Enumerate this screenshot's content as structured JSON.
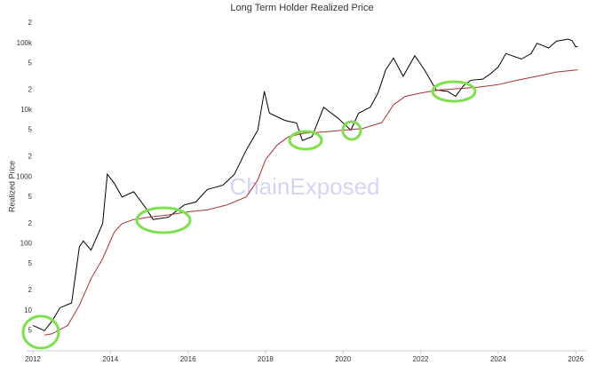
{
  "chart_data": {
    "type": "line",
    "title": "Long Term Holder Realized Price",
    "y_label": "Realized Price",
    "watermark": "ChainExposed",
    "log_y": true,
    "grid": false,
    "xlim": [
      2011.84,
      2026.27
    ],
    "xticks": [
      2012,
      2014,
      2016,
      2018,
      2020,
      2022,
      2024,
      2026
    ],
    "ylim": [
      2.5,
      280000
    ],
    "yticks": [
      {
        "value": 5,
        "label": "5"
      },
      10,
      {
        "value": 20,
        "label": "2"
      },
      {
        "value": 50,
        "label": "5"
      },
      100,
      {
        "value": 200,
        "label": "2"
      },
      {
        "value": 500,
        "label": "5"
      },
      1000,
      {
        "value": 2000,
        "label": "2"
      },
      {
        "value": 5000,
        "label": "5"
      },
      {
        "value": 10000,
        "label": "10k"
      },
      {
        "value": 20000,
        "label": "2"
      },
      {
        "value": 50000,
        "label": "5"
      },
      {
        "value": 100000,
        "label": "100k"
      },
      {
        "value": 200000,
        "label": "2"
      }
    ],
    "series": [
      {
        "color": "#000000",
        "x": [
          2012.0,
          2012.3,
          2012.5,
          2012.7,
          2013.0,
          2013.2,
          2013.3,
          2013.5,
          2013.8,
          2013.92,
          2014.1,
          2014.3,
          2014.6,
          2014.9,
          2015.1,
          2015.5,
          2015.9,
          2016.2,
          2016.5,
          2016.9,
          2017.2,
          2017.5,
          2017.8,
          2017.97,
          2018.1,
          2018.5,
          2018.8,
          2018.95,
          2019.2,
          2019.5,
          2019.9,
          2020.2,
          2020.4,
          2020.7,
          2020.9,
          2021.1,
          2021.3,
          2021.55,
          2021.85,
          2022.1,
          2022.4,
          2022.7,
          2022.9,
          2023.1,
          2023.3,
          2023.6,
          2023.8,
          2024.0,
          2024.2,
          2024.6,
          2024.85,
          2025.0,
          2025.3,
          2025.5,
          2025.8,
          2025.9,
          2026.0,
          2026.05
        ],
        "values": [
          6,
          5,
          7,
          11,
          13,
          90,
          110,
          80,
          200,
          1100,
          800,
          500,
          600,
          350,
          230,
          250,
          380,
          420,
          650,
          750,
          1100,
          2500,
          5000,
          19000,
          9000,
          7000,
          6400,
          3500,
          4000,
          11000,
          7300,
          5000,
          9000,
          11000,
          18000,
          40000,
          60000,
          32000,
          65000,
          40000,
          20000,
          19000,
          16000,
          23000,
          28000,
          29000,
          35000,
          44000,
          70000,
          58000,
          70000,
          100000,
          85000,
          107000,
          115000,
          110000,
          88000,
          90000
        ]
      },
      {
        "color": "#a83232",
        "x": [
          2012.3,
          2012.5,
          2012.9,
          2013.2,
          2013.5,
          2013.8,
          2014.1,
          2014.3,
          2014.6,
          2015.0,
          2015.5,
          2016.0,
          2016.5,
          2017.0,
          2017.5,
          2017.8,
          2018.0,
          2018.3,
          2018.6,
          2019.0,
          2019.5,
          2020.0,
          2020.5,
          2021.0,
          2021.3,
          2021.6,
          2022.0,
          2022.5,
          2023.0,
          2023.5,
          2024.0,
          2024.5,
          2025.0,
          2025.5,
          2026.05
        ],
        "values": [
          4.3,
          4.5,
          6,
          12,
          30,
          60,
          150,
          200,
          230,
          250,
          270,
          300,
          320,
          380,
          500,
          900,
          1800,
          3000,
          4000,
          4500,
          4700,
          5000,
          5300,
          6500,
          12000,
          16000,
          18000,
          20000,
          21000,
          22000,
          24000,
          28000,
          32000,
          37000,
          40000
        ]
      }
    ]
  }
}
